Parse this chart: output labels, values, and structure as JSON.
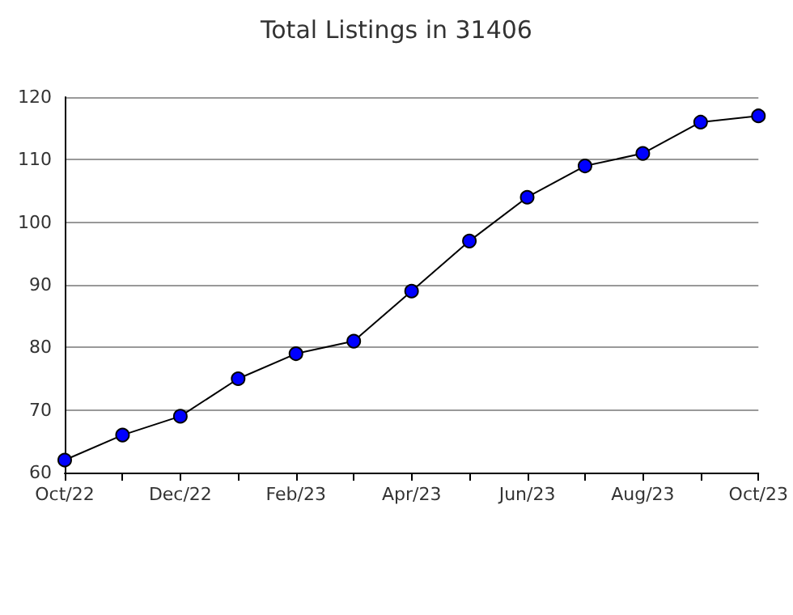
{
  "chart_data": {
    "type": "line",
    "title": "Total Listings in 31406",
    "categories": [
      "Oct/22",
      null,
      "Dec/22",
      null,
      "Feb/23",
      null,
      "Apr/23",
      null,
      "Jun/23",
      null,
      "Aug/23",
      null,
      "Oct/23"
    ],
    "series": [
      {
        "color": "#0000ff",
        "values": [
          62,
          66,
          69,
          75,
          79,
          81,
          89,
          97,
          104,
          109,
          111,
          116,
          117
        ]
      }
    ],
    "ylim": [
      60,
      120
    ],
    "yticks": [
      60,
      70,
      80,
      90,
      100,
      110,
      120
    ],
    "grid": "y",
    "marker": "circle",
    "line_style": "solid"
  }
}
